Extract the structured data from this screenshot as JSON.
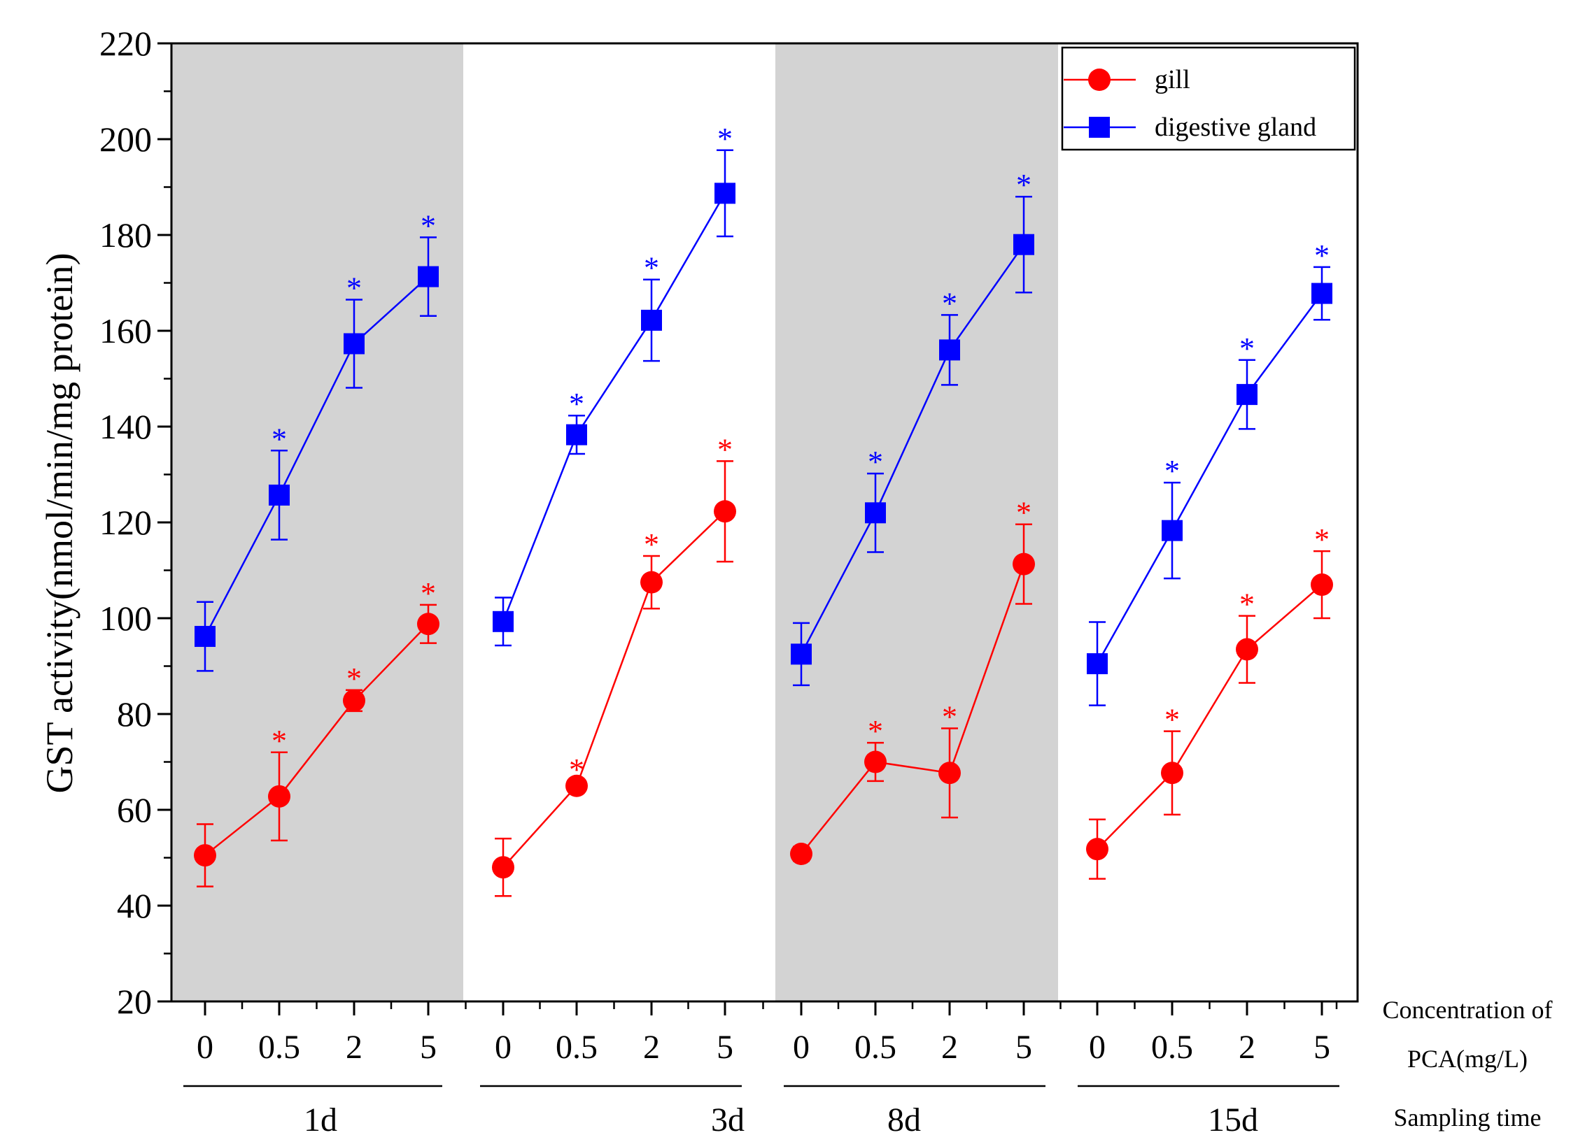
{
  "chart_data": {
    "type": "line",
    "ylabel": "GST activity(nmol/min/mg protein)",
    "ylim": [
      20,
      220
    ],
    "y_major_ticks": [
      20,
      40,
      60,
      80,
      100,
      120,
      140,
      160,
      180,
      200,
      220
    ],
    "x_caption_line1": "Concentration of",
    "x_caption_line2": "PCA(mg/L)",
    "group_caption": "Sampling time",
    "concentrations": [
      "0",
      "0.5",
      "2",
      "5"
    ],
    "groups": [
      {
        "label": "1d",
        "shaded": true
      },
      {
        "label": "3d",
        "shaded": false
      },
      {
        "label": "8d",
        "shaded": true
      },
      {
        "label": "15d",
        "shaded": false
      }
    ],
    "significance_marker": "*",
    "legend": {
      "placement": "top-right"
    },
    "series": [
      {
        "name": "gill",
        "color": "#ff0000",
        "marker": "circle",
        "groups": [
          {
            "values": [
              50.5,
              62.8,
              82.8,
              98.8
            ],
            "errors": [
              6.5,
              9.2,
              2.2,
              4.0
            ],
            "significant": [
              false,
              true,
              true,
              true
            ]
          },
          {
            "values": [
              48.0,
              65.0,
              107.5,
              122.3
            ],
            "errors": [
              6.0,
              1.0,
              5.5,
              10.5
            ],
            "significant": [
              false,
              true,
              true,
              true
            ]
          },
          {
            "values": [
              50.8,
              70.0,
              67.7,
              111.3
            ],
            "errors": [
              1.5,
              4.0,
              9.3,
              8.3
            ],
            "significant": [
              false,
              true,
              true,
              true
            ]
          },
          {
            "values": [
              51.8,
              67.7,
              93.5,
              107.0
            ],
            "errors": [
              6.2,
              8.7,
              7.0,
              7.0
            ],
            "significant": [
              false,
              true,
              true,
              true
            ]
          }
        ]
      },
      {
        "name": "digestive gland",
        "color": "#0000ff",
        "marker": "square",
        "groups": [
          {
            "values": [
              96.2,
              125.7,
              157.3,
              171.3
            ],
            "errors": [
              7.2,
              9.3,
              9.2,
              8.2
            ],
            "significant": [
              false,
              true,
              true,
              true
            ]
          },
          {
            "values": [
              99.3,
              138.3,
              162.2,
              188.7
            ],
            "errors": [
              5.0,
              4.0,
              8.5,
              9.0
            ],
            "significant": [
              false,
              true,
              true,
              true
            ]
          },
          {
            "values": [
              92.5,
              122.0,
              156.0,
              178.0
            ],
            "errors": [
              6.5,
              8.2,
              7.3,
              10.0
            ],
            "significant": [
              false,
              true,
              true,
              true
            ]
          },
          {
            "values": [
              90.5,
              118.3,
              146.7,
              167.8
            ],
            "errors": [
              8.7,
              10.0,
              7.2,
              5.5
            ],
            "significant": [
              false,
              true,
              true,
              true
            ]
          }
        ]
      }
    ]
  }
}
